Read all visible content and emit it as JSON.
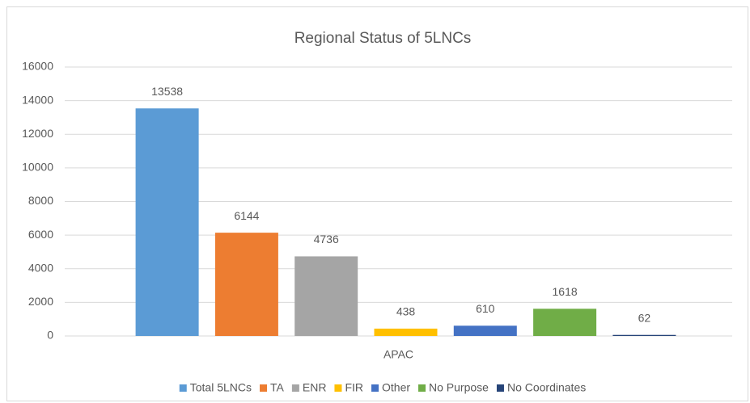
{
  "chart_data": {
    "type": "bar",
    "title": "Regional Status of 5LNCs",
    "categories": [
      "APAC"
    ],
    "series": [
      {
        "name": "Total 5LNCs",
        "color": "#5b9bd5",
        "values": [
          13538
        ]
      },
      {
        "name": "TA",
        "color": "#ed7d31",
        "values": [
          6144
        ]
      },
      {
        "name": "ENR",
        "color": "#a5a5a5",
        "values": [
          4736
        ]
      },
      {
        "name": "FIR",
        "color": "#ffc000",
        "values": [
          438
        ]
      },
      {
        "name": "Other",
        "color": "#4472c4",
        "values": [
          610
        ]
      },
      {
        "name": "No Purpose",
        "color": "#70ad47",
        "values": [
          1618
        ]
      },
      {
        "name": "No Coordinates",
        "color": "#264478",
        "values": [
          62
        ]
      }
    ],
    "ylim": [
      0,
      16000
    ],
    "yticks": [
      0,
      2000,
      4000,
      6000,
      8000,
      10000,
      12000,
      14000,
      16000
    ],
    "grid": true,
    "legend": "bottom"
  }
}
